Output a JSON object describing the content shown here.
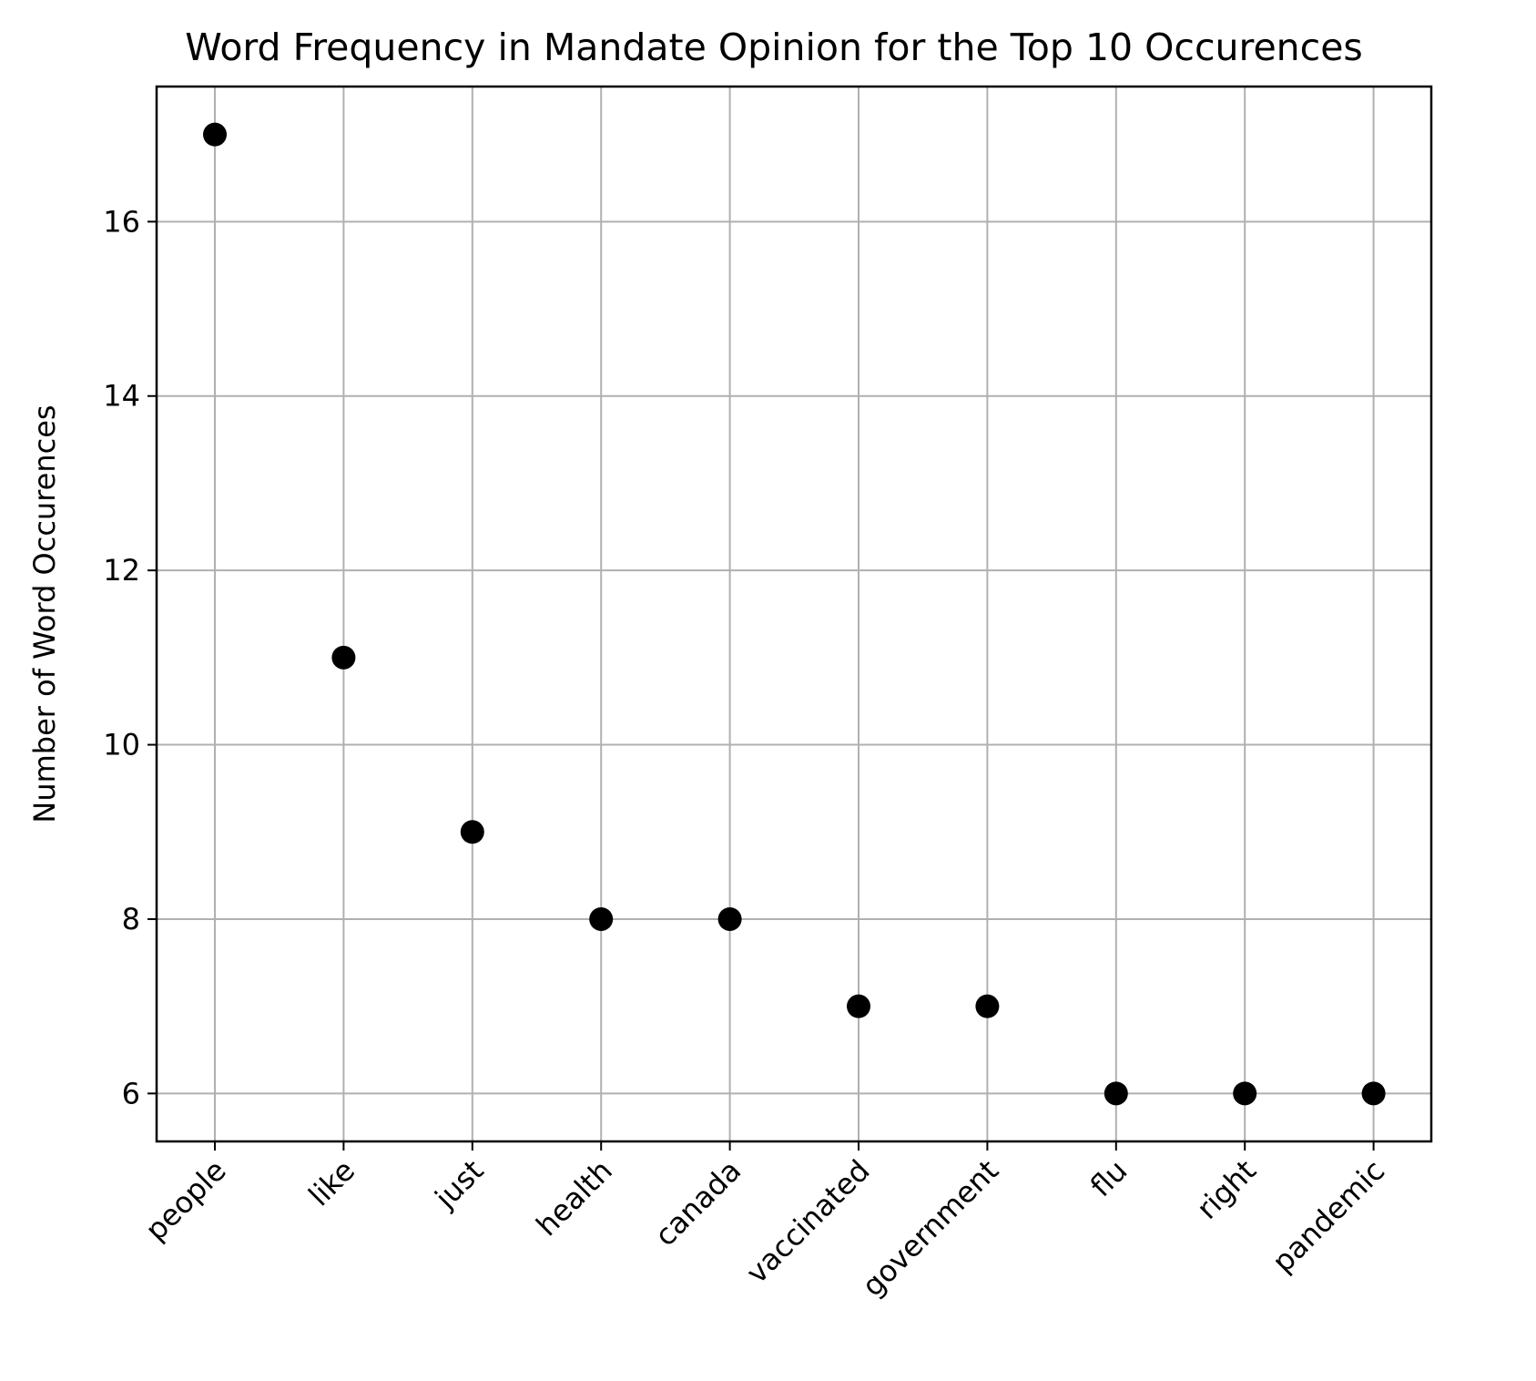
{
  "chart_data": {
    "type": "scatter",
    "title": "Word Frequency in Mandate Opinion for the Top 10 Occurences",
    "xlabel": "",
    "ylabel": "Number of Word Occurences",
    "categories": [
      "people",
      "like",
      "just",
      "health",
      "canada",
      "vaccinated",
      "government",
      "flu",
      "right",
      "pandemic"
    ],
    "values": [
      17,
      11,
      9,
      8,
      8,
      7,
      7,
      6,
      6,
      6
    ],
    "yticks": [
      6,
      8,
      10,
      12,
      14,
      16
    ],
    "ylim": [
      5.45,
      17.55
    ],
    "grid": true,
    "marker_color": "#000000",
    "grid_color": "#b0b0b0"
  }
}
